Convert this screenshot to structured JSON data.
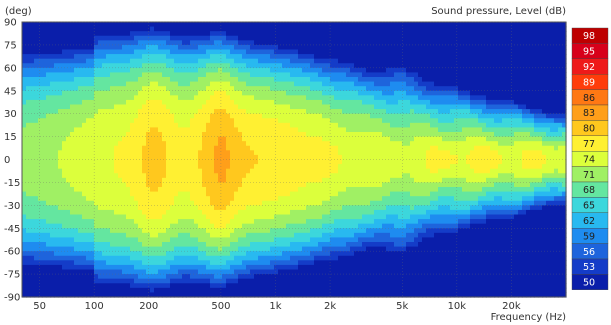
{
  "chart_data": {
    "type": "heatmap",
    "title": "Sound pressure, Level  (dB)",
    "ylabel": "(deg)",
    "xlabel": "Frequency  (Hz)",
    "x_scale": "log",
    "xlim": [
      40,
      40000
    ],
    "ylim": [
      -90,
      90
    ],
    "x_ticks": [
      {
        "label": "50",
        "value": 50
      },
      {
        "label": "100",
        "value": 100
      },
      {
        "label": "200",
        "value": 200
      },
      {
        "label": "500",
        "value": 500
      },
      {
        "label": "1k",
        "value": 1000
      },
      {
        "label": "2k",
        "value": 2000
      },
      {
        "label": "5k",
        "value": 5000
      },
      {
        "label": "10k",
        "value": 10000
      },
      {
        "label": "20k",
        "value": 20000
      }
    ],
    "y_ticks": [
      "90",
      "75",
      "60",
      "45",
      "30",
      "15",
      "0",
      "-15",
      "-30",
      "-45",
      "-60",
      "-75",
      "-90"
    ],
    "colorbar": {
      "levels": [
        "98",
        "95",
        "92",
        "89",
        "86",
        "83",
        "80",
        "77",
        "74",
        "71",
        "68",
        "65",
        "62",
        "59",
        "56",
        "53",
        "50"
      ],
      "colors": [
        "#be0000",
        "#d7001a",
        "#ee1a1a",
        "#ff3c0a",
        "#ff7814",
        "#ff9f1a",
        "#ffc81e",
        "#fff032",
        "#dcff3c",
        "#a0f064",
        "#64e6a0",
        "#3cd7dc",
        "#28b9f0",
        "#1e8cf0",
        "#1e64dc",
        "#143cc8",
        "#0a1eaa"
      ]
    },
    "grid": true
  }
}
